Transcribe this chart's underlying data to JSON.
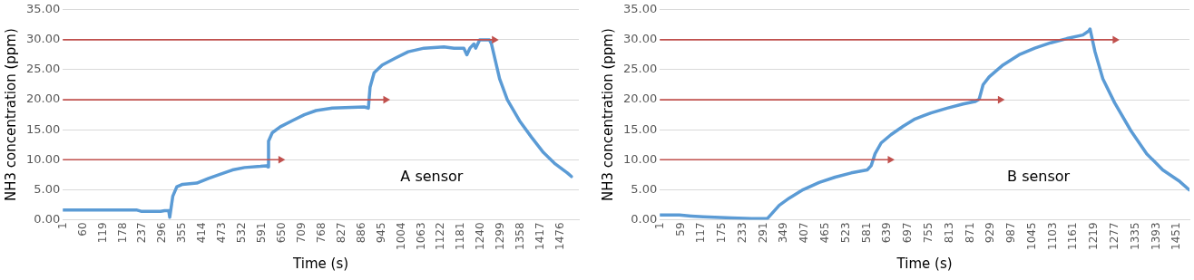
{
  "chart_data": [
    {
      "type": "line",
      "xlabel": "Time (s)",
      "ylabel": "NH3 concentration (ppm)",
      "annotations": [
        "A sensor"
      ],
      "grid": "y",
      "line_style": "solid",
      "marker": "none",
      "xlim": [
        0,
        1530
      ],
      "xticks": [
        1,
        60,
        119,
        178,
        237,
        296,
        355,
        414,
        473,
        532,
        591,
        650,
        709,
        768,
        827,
        886,
        945,
        1004,
        1063,
        1122,
        1181,
        1240,
        1299,
        1358,
        1417,
        1476
      ],
      "ylim": [
        0,
        35
      ],
      "yticks": [
        {
          "value": 0,
          "label": "0.00"
        },
        {
          "value": 5,
          "label": "5.00"
        },
        {
          "value": 10,
          "label": "10.00"
        },
        {
          "value": 15,
          "label": "15.00"
        },
        {
          "value": 20,
          "label": "20.00"
        },
        {
          "value": 25,
          "label": "25.00"
        },
        {
          "value": 30,
          "label": "30.00"
        },
        {
          "value": 35,
          "label": "35.00"
        }
      ],
      "series": [
        {
          "color": "#5b9bd5",
          "x": [
            1,
            220,
            232,
            290,
            302,
            314,
            317,
            326,
            338,
            355,
            397,
            432,
            468,
            503,
            539,
            586,
            604,
            608,
            610,
            621,
            645,
            680,
            716,
            751,
            799,
            894,
            906,
            911,
            923,
            947,
            988,
            1024,
            1071,
            1130,
            1160,
            1189,
            1198,
            1207,
            1219,
            1224,
            1236,
            1265,
            1271,
            1295,
            1318,
            1354,
            1389,
            1425,
            1460,
            1496,
            1508
          ],
          "values": [
            1.6,
            1.6,
            1.4,
            1.4,
            1.5,
            1.5,
            0.4,
            3.9,
            5.5,
            5.9,
            6.1,
            6.9,
            7.6,
            8.3,
            8.7,
            8.9,
            9.0,
            8.8,
            13.1,
            14.5,
            15.5,
            16.5,
            17.5,
            18.2,
            18.6,
            18.8,
            18.6,
            22.1,
            24.5,
            25.8,
            27,
            28,
            28.6,
            28.8,
            28.6,
            28.6,
            27.5,
            28.6,
            29.3,
            28.6,
            30,
            30,
            29.3,
            23.5,
            20,
            16.5,
            13.8,
            11.2,
            9.3,
            7.8,
            7.2
          ]
        },
        {
          "color": "#c0504d",
          "marker": "triangle",
          "x": [
            0,
            646
          ],
          "values": [
            10,
            10
          ]
        },
        {
          "color": "#c0504d",
          "marker": "triangle",
          "x": [
            0,
            957
          ],
          "values": [
            20,
            20
          ]
        },
        {
          "color": "#c0504d",
          "marker": "triangle",
          "x": [
            0,
            1279
          ],
          "values": [
            30,
            30
          ]
        }
      ]
    },
    {
      "type": "line",
      "xlabel": "Time (s)",
      "ylabel": "NH3 concentration (ppm)",
      "annotations": [
        "B sensor"
      ],
      "grid": "y",
      "line_style": "solid",
      "marker": "none",
      "xlim": [
        0,
        1486
      ],
      "xticks": [
        1,
        59,
        117,
        175,
        233,
        291,
        349,
        407,
        465,
        523,
        581,
        639,
        697,
        755,
        813,
        871,
        929,
        987,
        1045,
        1103,
        1161,
        1219,
        1277,
        1335,
        1393,
        1451
      ],
      "ylim": [
        0,
        35
      ],
      "yticks": [
        {
          "value": 0,
          "label": "0.00"
        },
        {
          "value": 5,
          "label": "5.00"
        },
        {
          "value": 10,
          "label": "10.00"
        },
        {
          "value": 15,
          "label": "15.00"
        },
        {
          "value": 20,
          "label": "20.00"
        },
        {
          "value": 25,
          "label": "25.00"
        },
        {
          "value": 30,
          "label": "30.00"
        },
        {
          "value": 35,
          "label": "35.00"
        }
      ],
      "series": [
        {
          "color": "#5b9bd5",
          "x": [
            1,
            55,
            88,
            122,
            201,
            257,
            302,
            335,
            363,
            402,
            447,
            492,
            537,
            582,
            593,
            604,
            621,
            649,
            683,
            716,
            761,
            806,
            851,
            885,
            896,
            907,
            924,
            963,
            1008,
            1052,
            1097,
            1142,
            1187,
            1204,
            1207,
            1221,
            1243,
            1276,
            1322,
            1366,
            1411,
            1456,
            1485
          ],
          "values": [
            0.8,
            0.8,
            0.6,
            0.5,
            0.3,
            0.2,
            0.2,
            2.4,
            3.6,
            5.0,
            6.2,
            7.1,
            7.8,
            8.3,
            9.0,
            11.0,
            12.8,
            14.2,
            15.6,
            16.8,
            17.8,
            18.6,
            19.3,
            19.7,
            20.1,
            22.5,
            23.8,
            25.8,
            27.5,
            28.6,
            29.5,
            30.2,
            30.8,
            31.5,
            31.8,
            28,
            23.5,
            19.5,
            14.8,
            11,
            8.3,
            6.5,
            5.0
          ]
        },
        {
          "color": "#c0504d",
          "marker": "triangle",
          "x": [
            0,
            646
          ],
          "values": [
            10,
            10
          ]
        },
        {
          "color": "#c0504d",
          "marker": "triangle",
          "x": [
            0,
            955
          ],
          "values": [
            20,
            20
          ]
        },
        {
          "color": "#c0504d",
          "marker": "triangle",
          "x": [
            0,
            1277
          ],
          "values": [
            30,
            30
          ]
        }
      ]
    }
  ]
}
